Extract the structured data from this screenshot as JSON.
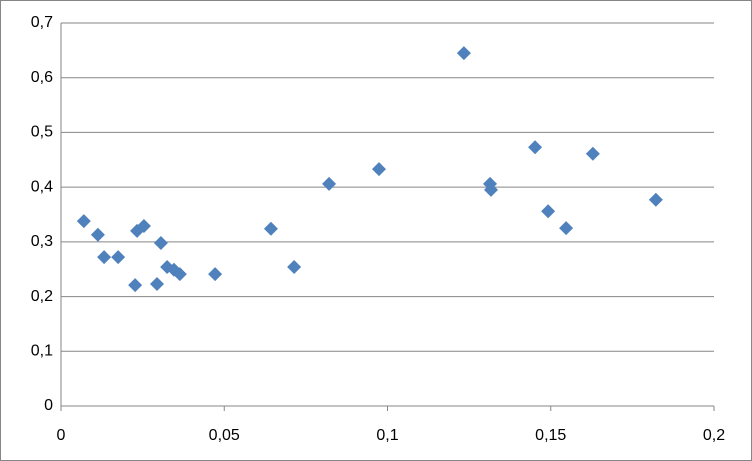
{
  "chart_data": {
    "type": "scatter",
    "color": "#4f81bd",
    "grid": true,
    "x": [
      0.007,
      0.0113,
      0.0132,
      0.0175,
      0.0233,
      0.0254,
      0.0227,
      0.0294,
      0.0306,
      0.0325,
      0.0346,
      0.0364,
      0.0472,
      0.0643,
      0.0714,
      0.0821,
      0.0974,
      0.1234,
      0.1314,
      0.1317,
      0.1452,
      0.1492,
      0.1547,
      0.1629,
      0.1822
    ],
    "values": [
      0.338,
      0.313,
      0.272,
      0.272,
      0.32,
      0.329,
      0.221,
      0.223,
      0.298,
      0.254,
      0.249,
      0.241,
      0.241,
      0.324,
      0.254,
      0.406,
      0.433,
      0.645,
      0.406,
      0.395,
      0.473,
      0.356,
      0.325,
      0.461,
      0.377
    ],
    "xlim": [
      0,
      0.2
    ],
    "xticks": [
      0,
      {
        "value": 0.05,
        "label": "0,05"
      },
      {
        "value": 0.1,
        "label": "0,1"
      },
      {
        "value": 0.15,
        "label": "0,15"
      },
      {
        "value": 0.2,
        "label": "0,2"
      }
    ],
    "ylim": [
      0,
      0.7
    ],
    "yticks": [
      0,
      {
        "value": 0.1,
        "label": "0,1"
      },
      {
        "value": 0.2,
        "label": "0,2"
      },
      {
        "value": 0.3,
        "label": "0,3"
      },
      {
        "value": 0.4,
        "label": "0,4"
      },
      {
        "value": 0.5,
        "label": "0,5"
      },
      {
        "value": 0.6,
        "label": "0,6"
      },
      {
        "value": 0.7,
        "label": "0,7"
      }
    ]
  }
}
